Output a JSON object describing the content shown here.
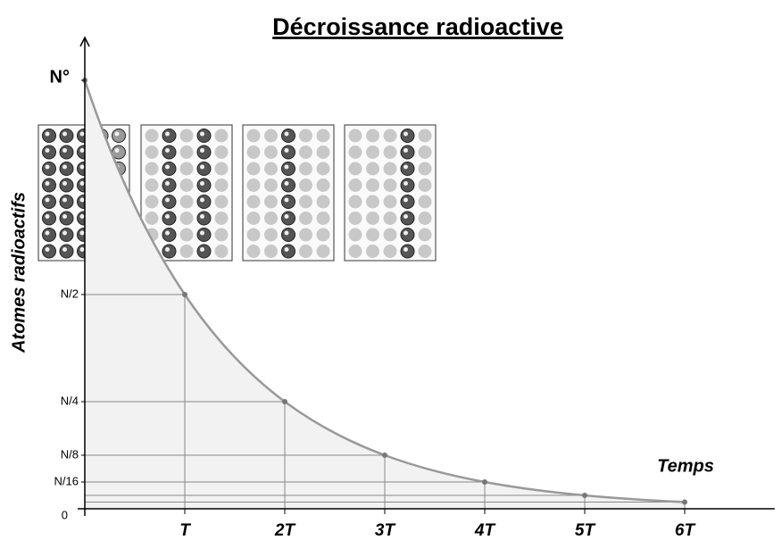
{
  "chart_data": {
    "type": "line",
    "title": "Décroissance radioactive",
    "y_label": "Atomes radioactifs",
    "x_label": "Temps",
    "x": [
      0,
      1,
      2,
      3,
      4,
      5,
      6
    ],
    "series": [
      {
        "color": "#999999",
        "values": [
          1,
          0.5,
          0.25,
          0.125,
          0.0625,
          0.03125,
          0.015625
        ]
      }
    ],
    "xlim": [
      0,
      6.9
    ],
    "ylim": [
      0,
      1.1
    ],
    "xticks": [
      {
        "value": 1,
        "label": "T"
      },
      {
        "value": 2,
        "label": "2T"
      },
      {
        "value": 3,
        "label": "3T"
      },
      {
        "value": 4,
        "label": "4T"
      },
      {
        "value": 5,
        "label": "5T"
      },
      {
        "value": 6,
        "label": "6T"
      }
    ],
    "yticks": [
      0,
      {
        "value": 0.0625,
        "label": "N/16"
      },
      {
        "value": 0.125,
        "label": "N/8"
      },
      {
        "value": 0.25,
        "label": "N/4"
      },
      {
        "value": 0.5,
        "label": "N/2"
      },
      {
        "value": 1,
        "label": "N°"
      }
    ]
  }
}
